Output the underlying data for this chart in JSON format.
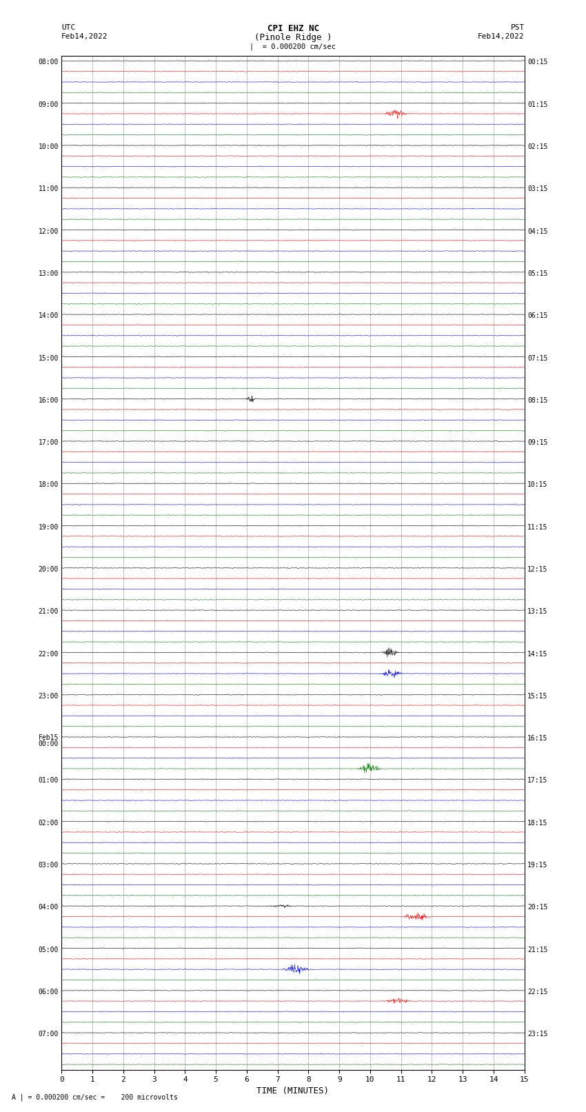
{
  "title_line1": "CPI EHZ NC",
  "title_line2": "(Pinole Ridge )",
  "scale_label": "= 0.000200 cm/sec",
  "left_date": "Feb14,2022",
  "right_date": "Feb14,2022",
  "left_tz": "UTC",
  "right_tz": "PST",
  "xlabel": "TIME (MINUTES)",
  "footer": "= 0.000200 cm/sec =    200 microvolts",
  "xlim": [
    0,
    15
  ],
  "xticks": [
    0,
    1,
    2,
    3,
    4,
    5,
    6,
    7,
    8,
    9,
    10,
    11,
    12,
    13,
    14,
    15
  ],
  "bg_color": "#ffffff",
  "trace_colors": [
    "black",
    "red",
    "blue",
    "green"
  ],
  "left_labels_utc": [
    "08:00",
    "09:00",
    "10:00",
    "11:00",
    "12:00",
    "13:00",
    "14:00",
    "15:00",
    "16:00",
    "17:00",
    "18:00",
    "19:00",
    "20:00",
    "21:00",
    "22:00",
    "23:00",
    "Feb15\n00:00",
    "01:00",
    "02:00",
    "03:00",
    "04:00",
    "05:00",
    "06:00",
    "07:00"
  ],
  "right_labels_pst": [
    "00:15",
    "01:15",
    "02:15",
    "03:15",
    "04:15",
    "05:15",
    "06:15",
    "07:15",
    "08:15",
    "09:15",
    "10:15",
    "11:15",
    "12:15",
    "13:15",
    "14:15",
    "15:15",
    "16:15",
    "17:15",
    "18:15",
    "19:15",
    "20:15",
    "21:15",
    "22:15",
    "23:15"
  ],
  "num_rows": 24,
  "traces_per_row": 4,
  "noise_scale": 0.06,
  "seed": 42
}
